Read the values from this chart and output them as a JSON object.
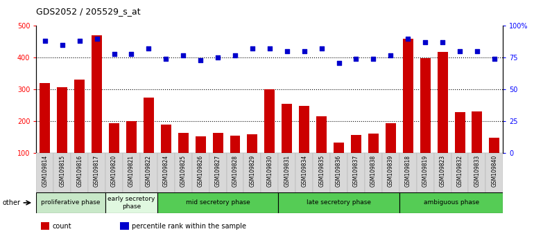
{
  "title": "GDS2052 / 205529_s_at",
  "categories": [
    "GSM109814",
    "GSM109815",
    "GSM109816",
    "GSM109817",
    "GSM109820",
    "GSM109821",
    "GSM109822",
    "GSM109824",
    "GSM109825",
    "GSM109826",
    "GSM109827",
    "GSM109828",
    "GSM109829",
    "GSM109830",
    "GSM109831",
    "GSM109834",
    "GSM109835",
    "GSM109836",
    "GSM109837",
    "GSM109838",
    "GSM109839",
    "GSM109818",
    "GSM109819",
    "GSM109823",
    "GSM109832",
    "GSM109833",
    "GSM109840"
  ],
  "bar_values": [
    320,
    308,
    330,
    470,
    195,
    200,
    275,
    190,
    163,
    152,
    163,
    155,
    160,
    300,
    255,
    248,
    215,
    133,
    158,
    162,
    193,
    460,
    398,
    418,
    228,
    232,
    148
  ],
  "dot_values": [
    88,
    85,
    88,
    90,
    78,
    78,
    82,
    74,
    77,
    73,
    75,
    77,
    82,
    82,
    80,
    80,
    82,
    71,
    74,
    74,
    77,
    90,
    87,
    87,
    80,
    80,
    74
  ],
  "phase_groups": [
    {
      "label": "proliferative phase",
      "start": 0,
      "end": 3,
      "color": "#c8e8c8"
    },
    {
      "label": "early secretory\nphase",
      "start": 4,
      "end": 6,
      "color": "#e0f8e0"
    },
    {
      "label": "mid secretory phase",
      "start": 7,
      "end": 13,
      "color": "#55cc55"
    },
    {
      "label": "late secretory phase",
      "start": 14,
      "end": 20,
      "color": "#55cc55"
    },
    {
      "label": "ambiguous phase",
      "start": 21,
      "end": 26,
      "color": "#55cc55"
    }
  ],
  "bar_color": "#cc0000",
  "dot_color": "#0000cc",
  "ylim_left": [
    100,
    500
  ],
  "ylim_right": [
    0,
    100
  ],
  "yticks_left": [
    100,
    200,
    300,
    400,
    500
  ],
  "yticks_right": [
    0,
    25,
    50,
    75,
    100
  ],
  "ytick_labels_right": [
    "0",
    "25",
    "50",
    "75",
    "100%"
  ],
  "grid_values": [
    200,
    300,
    400
  ],
  "other_label": "other",
  "legend_items": [
    {
      "color": "#cc0000",
      "label": "count"
    },
    {
      "color": "#0000cc",
      "label": "percentile rank within the sample"
    }
  ]
}
